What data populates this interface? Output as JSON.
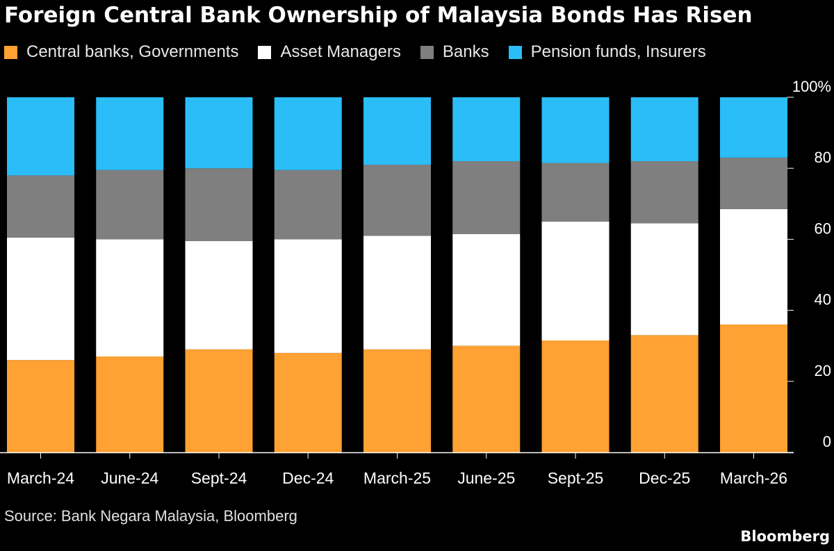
{
  "title": "Foreign Central Bank Ownership of Malaysia Bonds Has Risen",
  "source": "Source: Bank Negara Malaysia, Bloomberg",
  "brand": "Bloomberg",
  "chart_data": {
    "type": "bar",
    "stacked": true,
    "title": "Foreign Central Bank Ownership of Malaysia Bonds Has Risen",
    "xlabel": "",
    "ylabel": "",
    "ylim": [
      0,
      100
    ],
    "y_ticks": [
      "0",
      "20",
      "40",
      "60",
      "80",
      "100%"
    ],
    "y_tick_values": [
      0,
      20,
      40,
      60,
      80,
      100
    ],
    "y_axis_position": "right",
    "grid": false,
    "legend_position": "top",
    "categories": [
      "March-24",
      "June-24",
      "Sept-24",
      "Dec-24",
      "March-25",
      "June-25",
      "Sept-25",
      "Dec-25",
      "March-26"
    ],
    "series": [
      {
        "name": "Central banks, Governments",
        "color": "#ffa133",
        "values": [
          26,
          27,
          29,
          28,
          29,
          30,
          31.5,
          33,
          36
        ]
      },
      {
        "name": "Asset Managers",
        "color": "#ffffff",
        "values": [
          34.5,
          33,
          30.5,
          32,
          32,
          31.5,
          33.5,
          31.5,
          32.5
        ]
      },
      {
        "name": "Banks",
        "color": "#7f7f7f",
        "values": [
          17.5,
          19.5,
          20.5,
          19.5,
          20,
          20.5,
          16.5,
          17.5,
          14.5
        ]
      },
      {
        "name": "Pension funds, Insurers",
        "color": "#2bbdf7",
        "values": [
          22,
          20.5,
          20,
          20.5,
          19,
          18,
          18.5,
          18,
          17
        ]
      }
    ]
  }
}
